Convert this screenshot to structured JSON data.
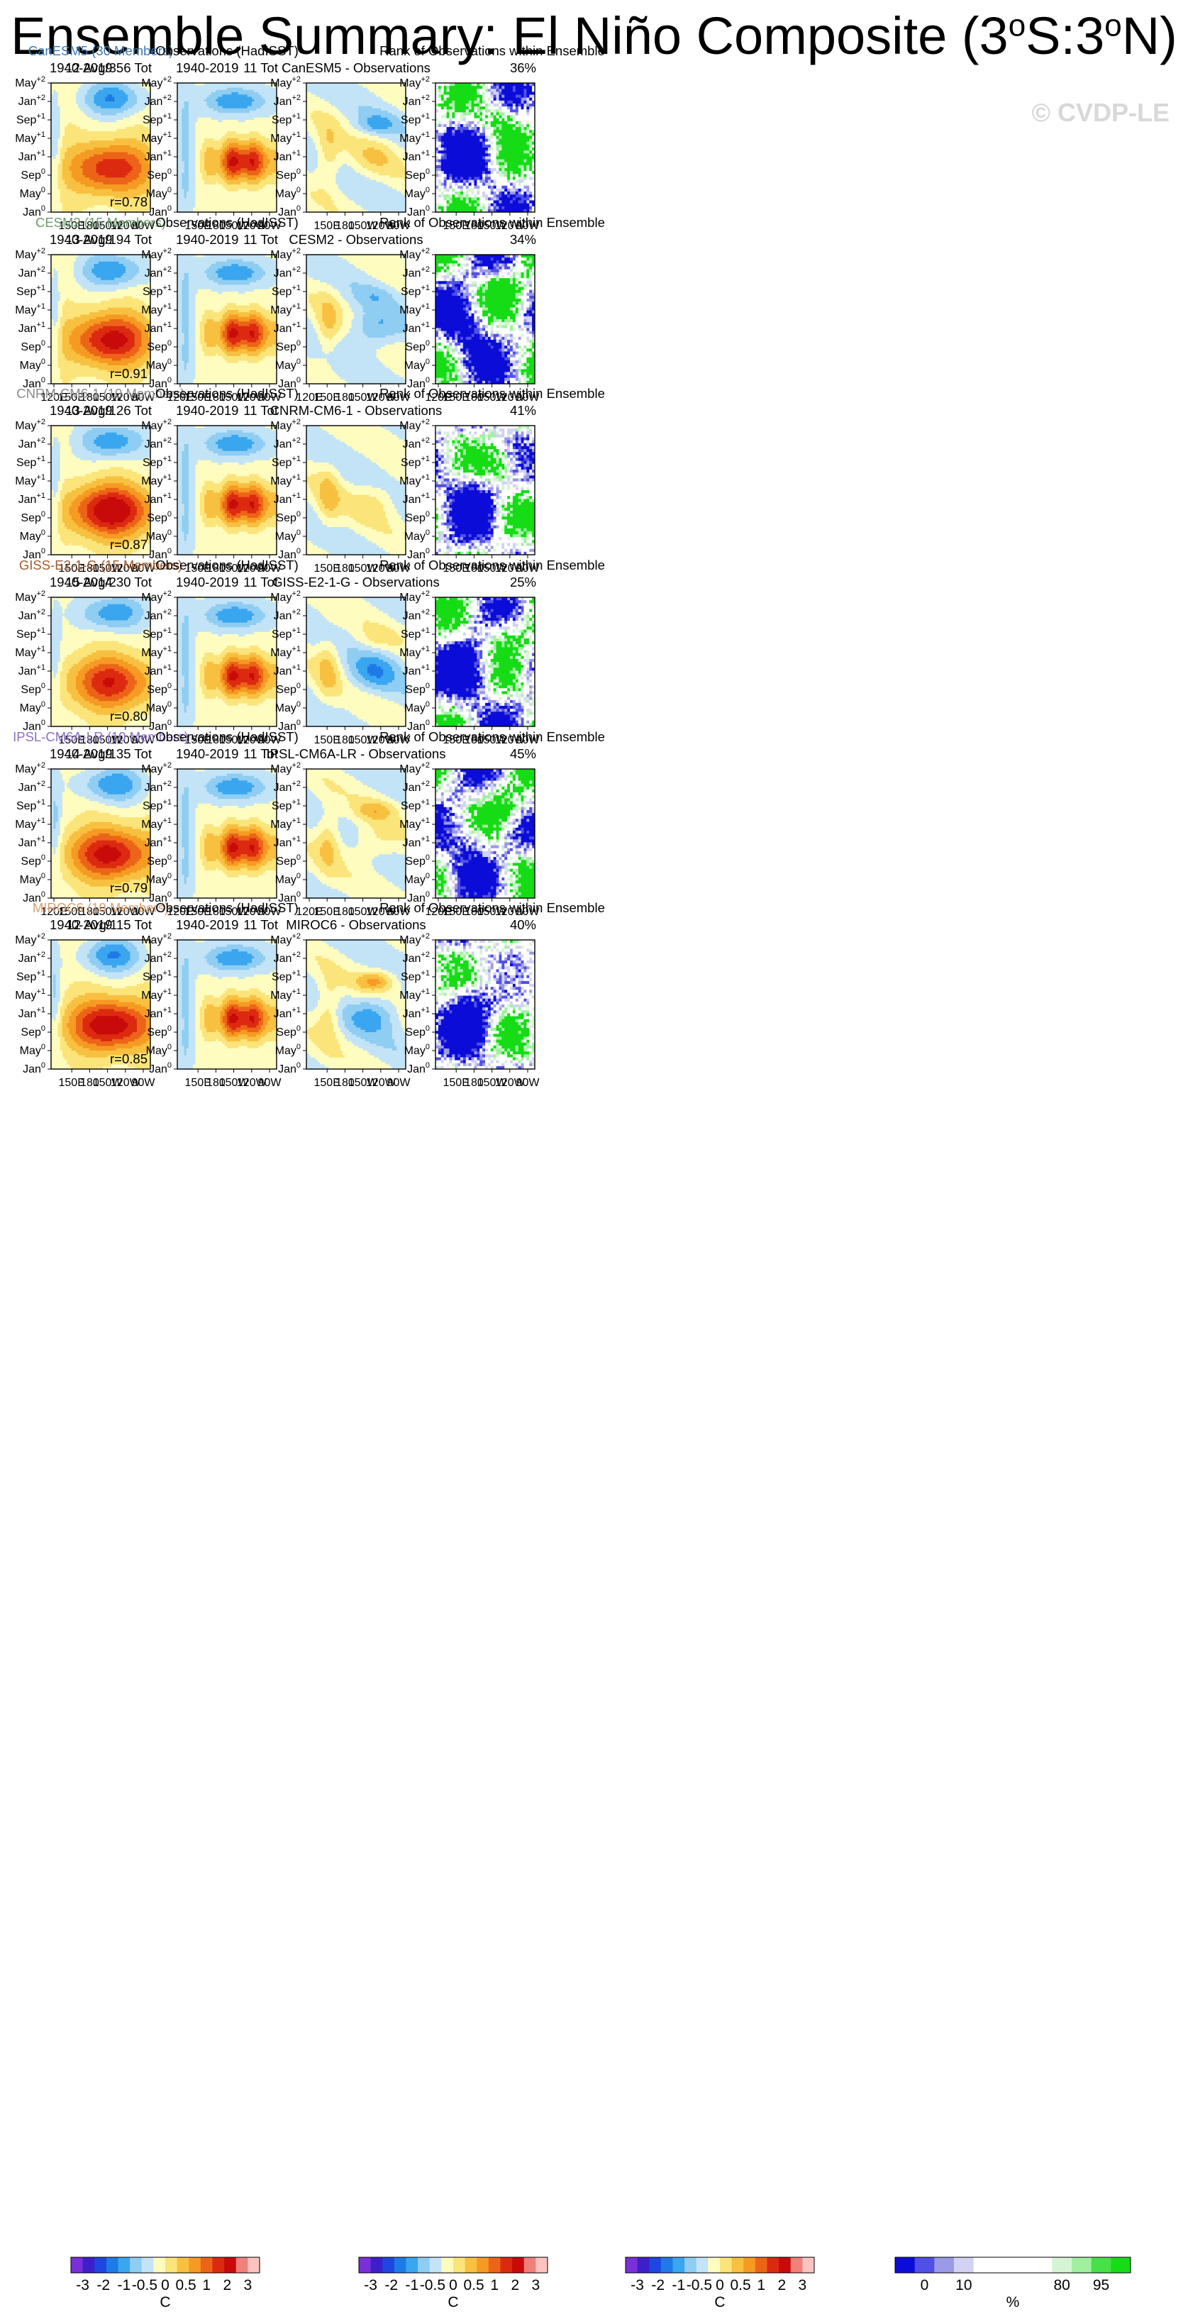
{
  "title": {
    "main": "Ensemble Summary: El Niño Composite (3",
    "deg1": "o",
    "mid": "S:3",
    "deg2": "o",
    "end": "N)"
  },
  "watermark": "© CVDP-LE",
  "axes": {
    "y_ticks": [
      {
        "base": "May",
        "sup": "+2"
      },
      {
        "base": "Jan",
        "sup": "+2"
      },
      {
        "base": "Sep",
        "sup": "+1"
      },
      {
        "base": "May",
        "sup": "+1"
      },
      {
        "base": "Jan",
        "sup": "+1"
      },
      {
        "base": "Sep",
        "sup": "0"
      },
      {
        "base": "May",
        "sup": "0"
      },
      {
        "base": "Jan",
        "sup": "0"
      }
    ],
    "x_ticks": [
      "120E",
      "150E",
      "180",
      "150W",
      "120W",
      "90W"
    ],
    "x_ticks_rank": [
      "120E",
      "150E",
      "180",
      "150W",
      "120W",
      "90W"
    ]
  },
  "column_titles": {
    "obs": "Observations (HadISST)",
    "rank": "Rank of Observations within Ensemble",
    "obs_period": "1940-2019",
    "obs_count": "11 Tot"
  },
  "rows": [
    {
      "model": "CanESM5 (30 Members)",
      "model_color": "#3a78b4",
      "period": "1940-2019",
      "count": "12 Avg/356 Tot",
      "r": "r=0.78",
      "diff": "CanESM5 - Observations",
      "rank_pct": "36%",
      "show120": false
    },
    {
      "model": "CESM2 (15 Members)",
      "model_color": "#6e9b6e",
      "period": "1940-2019",
      "count": "13 Avg/194 Tot",
      "r": "r=0.91",
      "diff": "CESM2 - Observations",
      "rank_pct": "34%",
      "show120": true
    },
    {
      "model": "CNRM-CM6-1 (10 Members)",
      "model_color": "#8a8a8a",
      "period": "1940-2019",
      "count": "13 Avg/126 Tot",
      "r": "r=0.87",
      "diff": "CNRM-CM6-1 - Observations",
      "rank_pct": "41%",
      "show120": false
    },
    {
      "model": "GISS-E2-1-G (15 Members)",
      "model_color": "#a05a2c",
      "period": "1940-2014",
      "count": "15 Avg/230 Tot",
      "r": "r=0.80",
      "diff": "GISS-E2-1-G - Observations",
      "rank_pct": "25%",
      "show120": false
    },
    {
      "model": "IPSL-CM6A-LR (10 Members)",
      "model_color": "#8a6fc4",
      "period": "1940-2019",
      "count": "14 Avg/135 Tot",
      "r": "r=0.79",
      "diff": "IPSL-CM6A-LR - Observations",
      "rank_pct": "45%",
      "show120": true
    },
    {
      "model": "MIROC6 (10 Members)",
      "model_color": "#d8a070",
      "period": "1940-2019",
      "count": "12 Avg/115 Tot",
      "r": "r=0.85",
      "diff": "MIROC6 - Observations",
      "rank_pct": "40%",
      "show120": false
    }
  ],
  "colorbar_sst": {
    "labels": [
      "-3",
      "-2",
      "-1",
      "-0.5",
      "0",
      "0.5",
      "1",
      "2",
      "3"
    ],
    "unit": "C",
    "colors": [
      "#7a2fd8",
      "#3c1fc8",
      "#1e46e0",
      "#1e7ae6",
      "#3aa6ef",
      "#8fcdf3",
      "#c3e4f6",
      "#fffcc0",
      "#fbe47a",
      "#f8c040",
      "#f59a22",
      "#ec6418",
      "#dc2a10",
      "#c80a0a",
      "#f0807a",
      "#fbc4c0"
    ]
  },
  "colorbar_rank": {
    "labels": [
      "0",
      "10",
      "80",
      "95"
    ],
    "unit": "%",
    "colors": [
      "#0c0cd8",
      "#5050e6",
      "#9a9ae8",
      "#d2d2f4",
      "#ffffff",
      "#ffffff",
      "#ffffff",
      "#ffffff",
      "#d4f5d4",
      "#a0f0a0",
      "#48e048",
      "#16dc16"
    ]
  },
  "chart_data": [
    {
      "type": "heatmap",
      "panel": "ensemble_mean_composite",
      "xlabel": "",
      "ylabel": "",
      "x": [
        "120E",
        "150E",
        "180",
        "150W",
        "120W",
        "90W"
      ],
      "y": [
        "Jan0",
        "May0",
        "Sep0",
        "Jan+1",
        "May+1",
        "Sep+1",
        "Jan+2",
        "May+2"
      ],
      "units": "C",
      "r_with_obs": [
        0.78,
        0.91,
        0.87,
        0.8,
        0.79,
        0.85
      ]
    },
    {
      "type": "heatmap",
      "panel": "observations_hadisst",
      "units": "C"
    },
    {
      "type": "heatmap",
      "panel": "model_minus_observations",
      "units": "C"
    },
    {
      "type": "heatmap",
      "panel": "rank_of_observations",
      "units": "%",
      "overall_rank_pct": [
        36,
        34,
        41,
        25,
        45,
        40
      ]
    }
  ]
}
